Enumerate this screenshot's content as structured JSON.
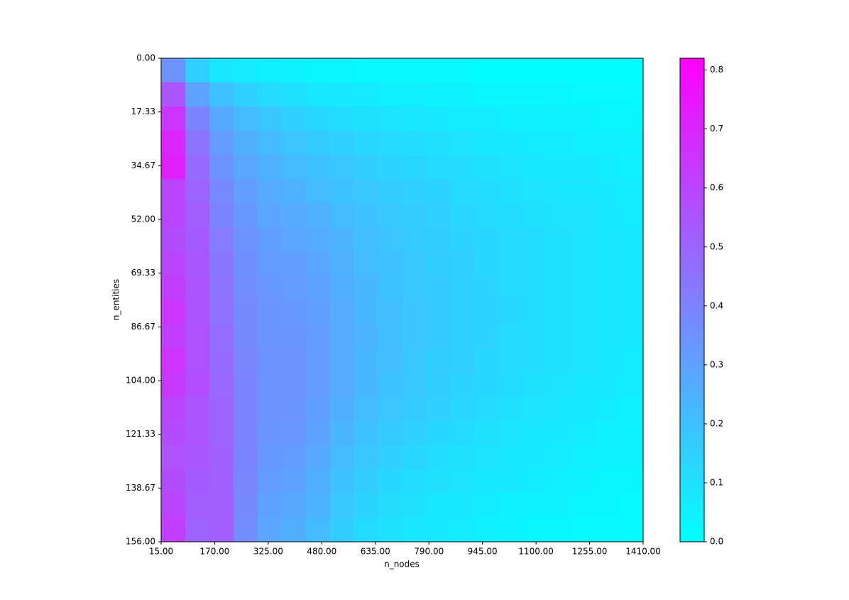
{
  "chart_data": {
    "type": "heatmap",
    "colormap": "cool",
    "x_label": "n_nodes",
    "y_label": "n_entities",
    "xlim": [
      15,
      1410
    ],
    "ylim": [
      0,
      156
    ],
    "clim": [
      0,
      0.82
    ],
    "xticks": [
      {
        "value": 15,
        "label": "15.00"
      },
      {
        "value": 170,
        "label": "170.00"
      },
      {
        "value": 325,
        "label": "325.00"
      },
      {
        "value": 480,
        "label": "480.00"
      },
      {
        "value": 635,
        "label": "635.00"
      },
      {
        "value": 790,
        "label": "790.00"
      },
      {
        "value": 945,
        "label": "945.00"
      },
      {
        "value": 1100,
        "label": "1100.00"
      },
      {
        "value": 1255,
        "label": "1255.00"
      },
      {
        "value": 1410,
        "label": "1410.00"
      }
    ],
    "yticks": [
      {
        "value": 0,
        "label": "0.00"
      },
      {
        "value": 17.33,
        "label": "17.33"
      },
      {
        "value": 34.67,
        "label": "34.67"
      },
      {
        "value": 52,
        "label": "52.00"
      },
      {
        "value": 69.33,
        "label": "69.33"
      },
      {
        "value": 86.67,
        "label": "86.67"
      },
      {
        "value": 104,
        "label": "104.00"
      },
      {
        "value": 121.33,
        "label": "121.33"
      },
      {
        "value": 138.67,
        "label": "138.67"
      },
      {
        "value": 156,
        "label": "156.00"
      }
    ],
    "cticks": [
      {
        "value": 0,
        "label": "0.0"
      },
      0.1,
      0.2,
      0.3,
      0.4,
      0.5,
      0.6,
      0.7,
      0.8
    ],
    "values": [
      [
        0.35,
        0.15,
        0.08,
        0.06,
        0.05,
        0.04,
        0.03,
        0.03,
        0.02,
        0.02,
        0.02,
        0.02,
        0.02,
        0.01,
        0.01,
        0.01,
        0.01,
        0.01,
        0.01,
        0.01
      ],
      [
        0.55,
        0.3,
        0.2,
        0.15,
        0.12,
        0.1,
        0.08,
        0.07,
        0.06,
        0.05,
        0.05,
        0.04,
        0.04,
        0.03,
        0.03,
        0.03,
        0.03,
        0.02,
        0.02,
        0.02
      ],
      [
        0.65,
        0.4,
        0.28,
        0.22,
        0.18,
        0.15,
        0.13,
        0.11,
        0.1,
        0.09,
        0.08,
        0.07,
        0.06,
        0.06,
        0.05,
        0.05,
        0.04,
        0.04,
        0.03,
        0.03
      ],
      [
        0.7,
        0.45,
        0.32,
        0.26,
        0.22,
        0.19,
        0.17,
        0.15,
        0.13,
        0.12,
        0.11,
        0.1,
        0.09,
        0.08,
        0.07,
        0.06,
        0.06,
        0.05,
        0.05,
        0.04
      ],
      [
        0.72,
        0.48,
        0.35,
        0.29,
        0.25,
        0.22,
        0.2,
        0.18,
        0.16,
        0.14,
        0.13,
        0.12,
        0.11,
        0.1,
        0.09,
        0.08,
        0.07,
        0.07,
        0.06,
        0.05
      ],
      [
        0.6,
        0.5,
        0.38,
        0.31,
        0.27,
        0.25,
        0.22,
        0.2,
        0.18,
        0.16,
        0.15,
        0.14,
        0.12,
        0.11,
        0.1,
        0.09,
        0.08,
        0.08,
        0.07,
        0.06
      ],
      [
        0.6,
        0.52,
        0.4,
        0.33,
        0.29,
        0.27,
        0.25,
        0.22,
        0.2,
        0.18,
        0.16,
        0.15,
        0.13,
        0.12,
        0.11,
        0.1,
        0.09,
        0.09,
        0.08,
        0.06
      ],
      [
        0.58,
        0.53,
        0.42,
        0.35,
        0.31,
        0.29,
        0.27,
        0.24,
        0.21,
        0.19,
        0.17,
        0.16,
        0.14,
        0.13,
        0.12,
        0.11,
        0.1,
        0.09,
        0.08,
        0.07
      ],
      [
        0.6,
        0.54,
        0.44,
        0.36,
        0.32,
        0.31,
        0.29,
        0.25,
        0.22,
        0.2,
        0.18,
        0.16,
        0.15,
        0.13,
        0.12,
        0.11,
        0.1,
        0.09,
        0.08,
        0.07
      ],
      [
        0.62,
        0.55,
        0.45,
        0.37,
        0.33,
        0.32,
        0.3,
        0.26,
        0.23,
        0.2,
        0.18,
        0.17,
        0.15,
        0.14,
        0.12,
        0.11,
        0.1,
        0.09,
        0.08,
        0.07
      ],
      [
        0.65,
        0.55,
        0.46,
        0.38,
        0.34,
        0.33,
        0.31,
        0.27,
        0.23,
        0.21,
        0.19,
        0.17,
        0.15,
        0.14,
        0.13,
        0.11,
        0.1,
        0.09,
        0.08,
        0.07
      ],
      [
        0.62,
        0.56,
        0.47,
        0.38,
        0.34,
        0.34,
        0.32,
        0.27,
        0.24,
        0.21,
        0.19,
        0.17,
        0.15,
        0.14,
        0.12,
        0.11,
        0.1,
        0.09,
        0.08,
        0.07
      ],
      [
        0.66,
        0.56,
        0.48,
        0.39,
        0.35,
        0.35,
        0.32,
        0.27,
        0.23,
        0.21,
        0.18,
        0.16,
        0.15,
        0.13,
        0.12,
        0.11,
        0.1,
        0.09,
        0.08,
        0.06
      ],
      [
        0.64,
        0.57,
        0.49,
        0.4,
        0.35,
        0.35,
        0.32,
        0.27,
        0.23,
        0.2,
        0.18,
        0.16,
        0.14,
        0.13,
        0.11,
        0.1,
        0.09,
        0.08,
        0.07,
        0.06
      ],
      [
        0.6,
        0.55,
        0.5,
        0.4,
        0.35,
        0.34,
        0.31,
        0.26,
        0.22,
        0.19,
        0.17,
        0.15,
        0.13,
        0.12,
        0.1,
        0.09,
        0.08,
        0.07,
        0.06,
        0.05
      ],
      [
        0.58,
        0.55,
        0.5,
        0.4,
        0.34,
        0.33,
        0.3,
        0.24,
        0.2,
        0.17,
        0.15,
        0.13,
        0.12,
        0.1,
        0.09,
        0.08,
        0.07,
        0.06,
        0.05,
        0.04
      ],
      [
        0.56,
        0.54,
        0.51,
        0.4,
        0.33,
        0.32,
        0.28,
        0.22,
        0.18,
        0.15,
        0.13,
        0.11,
        0.1,
        0.09,
        0.08,
        0.07,
        0.06,
        0.05,
        0.04,
        0.04
      ],
      [
        0.58,
        0.53,
        0.51,
        0.39,
        0.32,
        0.3,
        0.26,
        0.2,
        0.16,
        0.13,
        0.11,
        0.1,
        0.09,
        0.08,
        0.07,
        0.06,
        0.05,
        0.04,
        0.03,
        0.03
      ],
      [
        0.6,
        0.52,
        0.52,
        0.38,
        0.3,
        0.28,
        0.24,
        0.18,
        0.14,
        0.12,
        0.1,
        0.08,
        0.07,
        0.06,
        0.05,
        0.04,
        0.04,
        0.03,
        0.03,
        0.02
      ],
      [
        0.62,
        0.5,
        0.52,
        0.37,
        0.29,
        0.26,
        0.22,
        0.16,
        0.12,
        0.1,
        0.08,
        0.07,
        0.06,
        0.05,
        0.04,
        0.03,
        0.03,
        0.02,
        0.02,
        0.02
      ]
    ]
  }
}
